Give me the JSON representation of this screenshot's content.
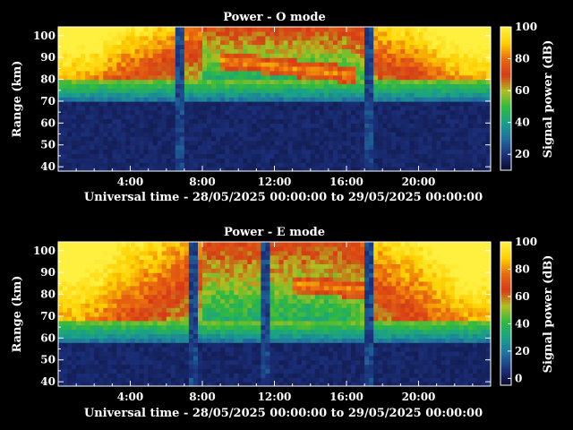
{
  "chart_data": [
    {
      "type": "heatmap",
      "title": "Power - O mode",
      "xlabel": "Universal time - 28/05/2025 00:00:00 to 29/05/2025 00:00:00",
      "ylabel": "Range (km)",
      "colorbar_label": "Signal power (dB)",
      "x_ticks": [
        "4:00",
        "8:00",
        "12:00",
        "16:00",
        "20:00"
      ],
      "x_tick_hours": [
        4,
        8,
        12,
        16,
        20
      ],
      "xlim_hours": [
        0,
        24
      ],
      "y_ticks": [
        40,
        50,
        60,
        70,
        80,
        90,
        100
      ],
      "ylim": [
        38,
        104
      ],
      "colorbar_ticks": [
        20,
        40,
        60,
        80,
        100
      ],
      "colorbar_range": [
        10,
        100
      ],
      "colorscale": [
        "#0a0a2a",
        "#1b2f7a",
        "#1f6fa0",
        "#1aa08a",
        "#2fba3f",
        "#b0c020",
        "#d63a16",
        "#e86a10",
        "#ffd000",
        "#fff040"
      ],
      "features": {
        "noise_floor_km": 70,
        "echo_base_km": 80,
        "strong_layer": {
          "start_hour": 9,
          "end_hour": 16.5,
          "alt_start_km": 89,
          "alt_end_km": 82
        },
        "gaps_hours": [
          6.8,
          17.3
        ]
      }
    },
    {
      "type": "heatmap",
      "title": "Power - E mode",
      "xlabel": "Universal time - 28/05/2025 00:00:00 to 29/05/2025 00:00:00",
      "ylabel": "Range (km)",
      "colorbar_label": "Signal power (dB)",
      "x_ticks": [
        "4:00",
        "8:00",
        "12:00",
        "16:00",
        "20:00"
      ],
      "x_tick_hours": [
        4,
        8,
        12,
        16,
        20
      ],
      "xlim_hours": [
        0,
        24
      ],
      "y_ticks": [
        40,
        50,
        60,
        70,
        80,
        90,
        100
      ],
      "ylim": [
        38,
        104
      ],
      "colorbar_ticks": [
        0,
        20,
        40,
        60,
        80,
        100
      ],
      "colorbar_range": [
        -5,
        100
      ],
      "colorscale": [
        "#0a0a2a",
        "#1b2f7a",
        "#1f6fa0",
        "#1aa08a",
        "#2fba3f",
        "#b0c020",
        "#d63a16",
        "#e86a10",
        "#ffd000",
        "#fff040"
      ],
      "features": {
        "noise_floor_km": 58,
        "echo_base_km": 68,
        "strong_layer": {
          "start_hour": 13,
          "end_hour": 17,
          "alt_start_km": 85,
          "alt_end_km": 82
        },
        "gaps_hours": [
          7.5,
          11.5,
          17.3
        ]
      }
    }
  ]
}
